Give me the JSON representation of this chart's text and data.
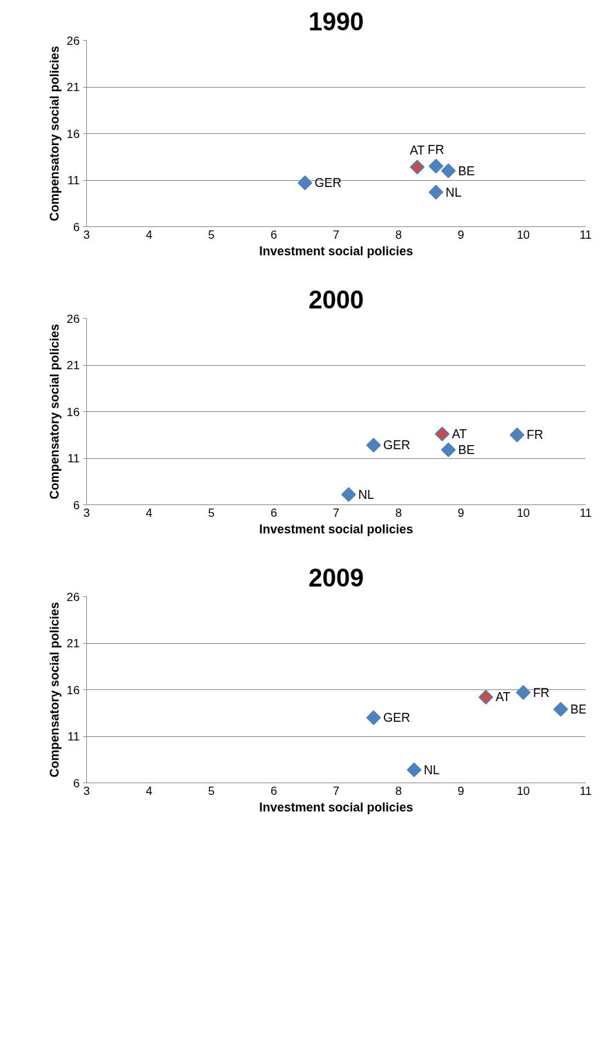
{
  "chart_data": [
    {
      "type": "scatter",
      "title": "1990",
      "xlabel": "Investment social policies",
      "ylabel": "Compensatory social policies",
      "xlim": [
        3,
        11
      ],
      "xticks": [
        3,
        4,
        5,
        6,
        7,
        8,
        9,
        10,
        11
      ],
      "ylim": [
        6,
        26
      ],
      "yticks": [
        6,
        11,
        16,
        21,
        26
      ],
      "grid": "y",
      "marker": "diamond",
      "series": [
        {
          "name": "GER",
          "color": "#4f81bd",
          "x": [
            6.5
          ],
          "values": [
            10.7
          ]
        },
        {
          "name": "AT",
          "color": "#c0504d",
          "x": [
            8.3
          ],
          "values": [
            12.4
          ]
        },
        {
          "name": "FR",
          "color": "#4f81bd",
          "x": [
            8.6
          ],
          "values": [
            12.5
          ]
        },
        {
          "name": "BE",
          "color": "#4f81bd",
          "x": [
            8.8
          ],
          "values": [
            12.0
          ]
        },
        {
          "name": "NL",
          "color": "#4f81bd",
          "x": [
            8.6
          ],
          "values": [
            9.7
          ]
        }
      ]
    },
    {
      "type": "scatter",
      "title": "2000",
      "xlabel": "Investment social policies",
      "ylabel": "Compensatory social policies",
      "xlim": [
        3,
        11
      ],
      "xticks": [
        3,
        4,
        5,
        6,
        7,
        8,
        9,
        10,
        11
      ],
      "ylim": [
        6,
        26
      ],
      "yticks": [
        6,
        11,
        16,
        21,
        26
      ],
      "grid": "y",
      "marker": "diamond",
      "series": [
        {
          "name": "GER",
          "color": "#4f81bd",
          "x": [
            7.6
          ],
          "values": [
            12.4
          ]
        },
        {
          "name": "AT",
          "color": "#c0504d",
          "x": [
            8.7
          ],
          "values": [
            13.6
          ]
        },
        {
          "name": "FR",
          "color": "#4f81bd",
          "x": [
            9.9
          ],
          "values": [
            13.5
          ]
        },
        {
          "name": "BE",
          "color": "#4f81bd",
          "x": [
            8.8
          ],
          "values": [
            11.9
          ]
        },
        {
          "name": "NL",
          "color": "#4f81bd",
          "x": [
            7.2
          ],
          "values": [
            7.1
          ]
        }
      ]
    },
    {
      "type": "scatter",
      "title": "2009",
      "xlabel": "Investment social policies",
      "ylabel": "Compensatory social policies",
      "xlim": [
        3,
        11
      ],
      "xticks": [
        3,
        4,
        5,
        6,
        7,
        8,
        9,
        10,
        11
      ],
      "ylim": [
        6,
        26
      ],
      "yticks": [
        6,
        11,
        16,
        21,
        26
      ],
      "grid": "y",
      "marker": "diamond",
      "series": [
        {
          "name": "GER",
          "color": "#4f81bd",
          "x": [
            7.6
          ],
          "values": [
            13.0
          ]
        },
        {
          "name": "AT",
          "color": "#c0504d",
          "x": [
            9.4
          ],
          "values": [
            15.2
          ]
        },
        {
          "name": "FR",
          "color": "#4f81bd",
          "x": [
            10.0
          ],
          "values": [
            15.7
          ]
        },
        {
          "name": "BE",
          "color": "#4f81bd",
          "x": [
            10.6
          ],
          "values": [
            13.9
          ]
        },
        {
          "name": "NL",
          "color": "#4f81bd",
          "x": [
            8.25
          ],
          "values": [
            7.4
          ]
        }
      ]
    }
  ]
}
